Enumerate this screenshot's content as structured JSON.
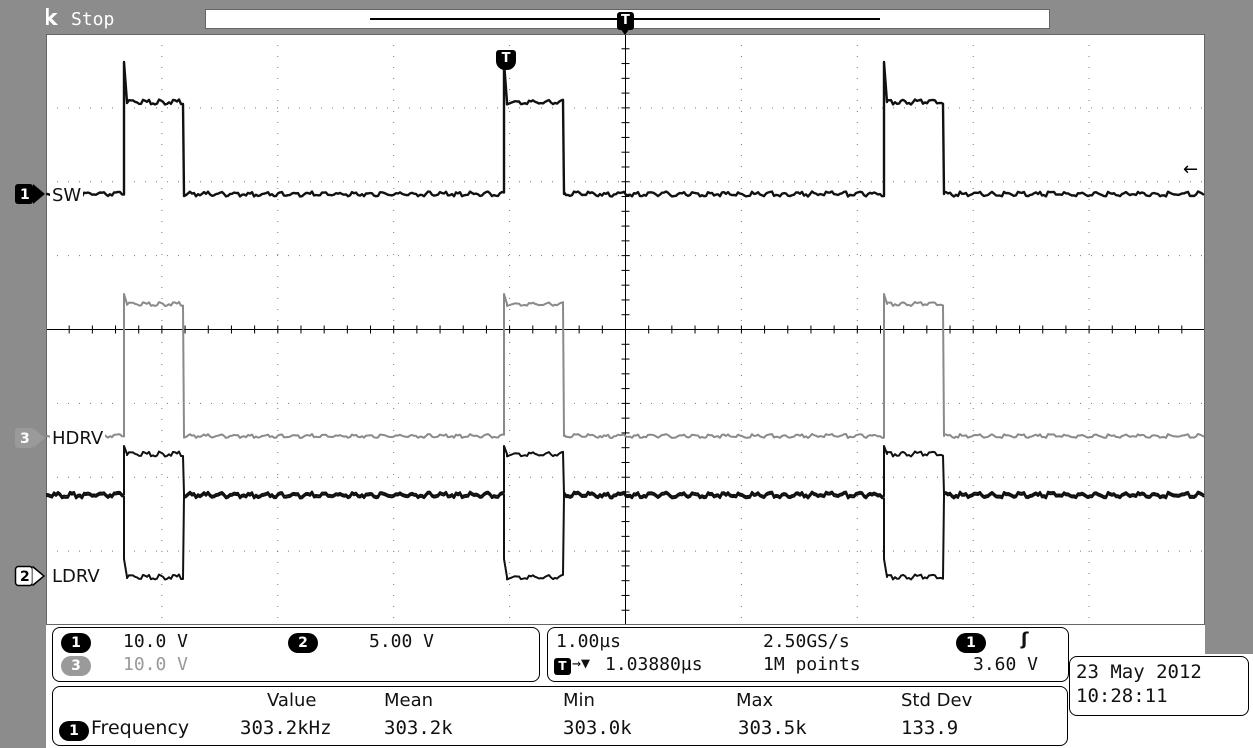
{
  "header": {
    "brand": "Tek",
    "acq_state": "Stop"
  },
  "markers": {
    "trigger_position": "T",
    "trigger": "T"
  },
  "channels": [
    {
      "number": "1",
      "label": "SW"
    },
    {
      "number": "3",
      "label": "HDRV"
    },
    {
      "number": "2",
      "label": "LDRV"
    }
  ],
  "vertical": {
    "ch1_scale": "10.0 V",
    "ch2_scale": "5.00 V",
    "ch3_scale": "10.0 V"
  },
  "horizontal": {
    "time_per_div": "1.00µs",
    "sample_rate": "2.50GS/s",
    "trigger_delay": "1.03880µs",
    "delay_prefix": "→▼",
    "record_length": "1M points",
    "trigger_channel": "1",
    "trigger_slope": "ʃ",
    "trigger_level": "3.60 V"
  },
  "measurements": {
    "headers": [
      "Value",
      "Mean",
      "Min",
      "Max",
      "Std Dev"
    ],
    "rows": [
      {
        "channel": "1",
        "name": "Frequency",
        "value": "303.2kHz",
        "mean": "303.2k",
        "min": "303.0k",
        "max": "303.5k",
        "std_dev": "133.9"
      }
    ]
  },
  "datetime": {
    "date": "23 May 2012",
    "time": "10:28:11"
  },
  "colors": {
    "frame": "#8c8c8c",
    "trace_dark": "#111111",
    "trace_gray": "#8a8a8a"
  }
}
